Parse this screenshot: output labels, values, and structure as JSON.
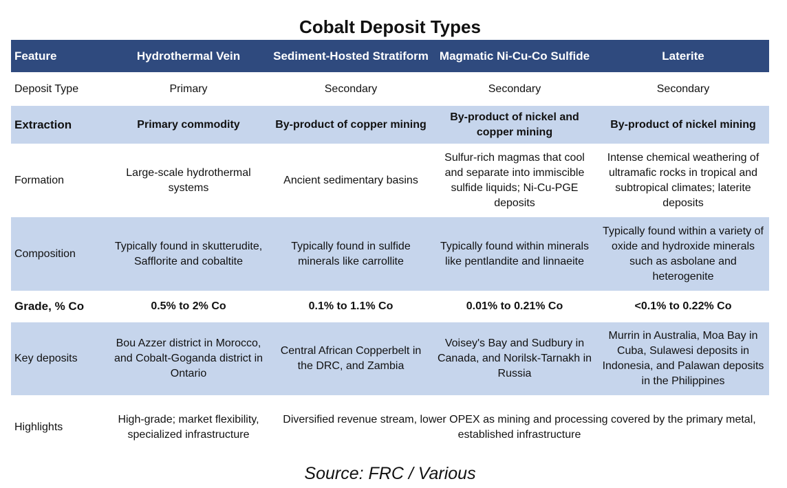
{
  "title": "Cobalt Deposit Types",
  "headers": [
    "Feature",
    "Hydrothermal Vein",
    "Sediment-Hosted Stratiform",
    "Magmatic Ni-Cu-Co Sulfide",
    "Laterite"
  ],
  "rows": {
    "deposit_type": [
      "Deposit Type",
      "Primary",
      "Secondary",
      "Secondary",
      "Secondary"
    ],
    "extraction": [
      "Extraction",
      "Primary commodity",
      "By-product of copper mining",
      "By-product of nickel and copper mining",
      "By-product of nickel mining"
    ],
    "formation": [
      "Formation",
      "Large-scale hydrothermal systems",
      "Ancient sedimentary basins",
      "Sulfur-rich magmas that cool and separate into immiscible sulfide liquids; Ni-Cu-PGE deposits",
      "Intense chemical weathering of ultramafic rocks in tropical and subtropical climates; laterite deposits"
    ],
    "composition": [
      "Composition",
      "Typically found in skutterudite, Safflorite and cobaltite",
      "Typically found in sulfide minerals like carrollite",
      "Typically found within minerals like pentlandite and linnaeite",
      "Typically found within a variety of oxide and hydroxide minerals such as asbolane and heterogenite"
    ],
    "grade": [
      "Grade, % Co",
      "0.5% to 2% Co",
      "0.1% to 1.1% Co",
      "0.01% to 0.21% Co",
      "<0.1% to 0.22% Co"
    ],
    "key_deposits": [
      "Key deposits",
      "Bou Azzer district in Morocco, and Cobalt-Goganda district in Ontario",
      "Central African Copperbelt in the DRC, and Zambia",
      "Voisey's Bay and Sudbury in Canada, and Norilsk-Tarnakh in Russia",
      "Murrin in Australia, Moa Bay in Cuba, Sulawesi deposits in Indonesia, and Palawan deposits in the Philippines"
    ],
    "highlights": [
      "Highlights",
      "High-grade; market flexibility, specialized infrastructure",
      "Diversified revenue stream, lower OPEX as mining and processing covered by the primary metal, established infrastructure"
    ]
  },
  "source": "Source: FRC / Various"
}
